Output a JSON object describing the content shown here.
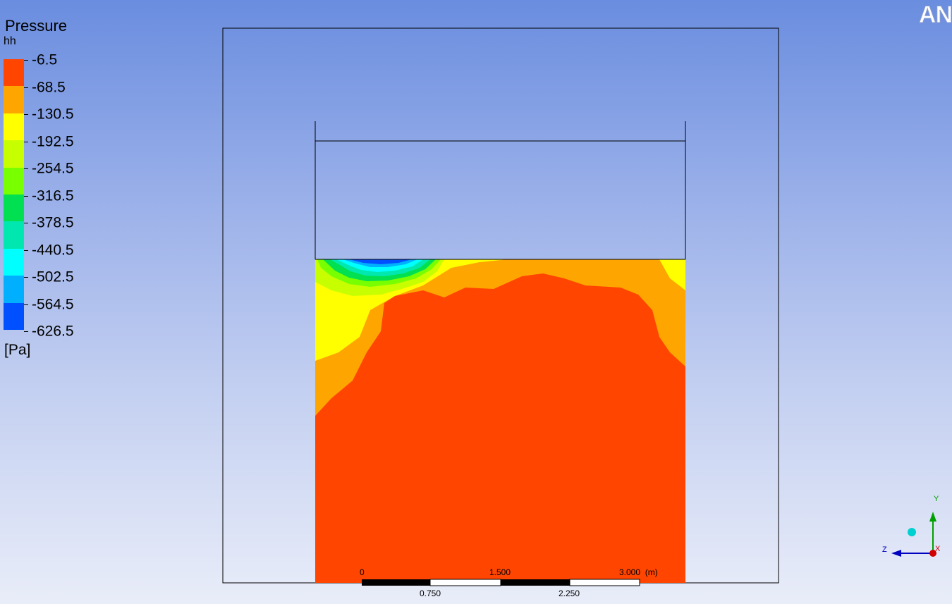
{
  "legend": {
    "title": "Pressure",
    "subtitle": "hh",
    "unit": "[Pa]",
    "labels": [
      "-6.5",
      "-68.5",
      "-130.5",
      "-192.5",
      "-254.5",
      "-316.5",
      "-378.5",
      "-440.5",
      "-502.5",
      "-564.5",
      "-626.5"
    ],
    "colors": [
      "#ff4500",
      "#ffa500",
      "#ffff00",
      "#c8ff00",
      "#78ff00",
      "#00e050",
      "#00e8b0",
      "#00ffff",
      "#00b0ff",
      "#0050ff"
    ]
  },
  "logo": {
    "text": "AN"
  },
  "scale_bar": {
    "top_labels": [
      "0",
      "1.500",
      "3.000  (m)"
    ],
    "bottom_labels": [
      "0.750",
      "2.250"
    ]
  },
  "triad": {
    "y_label": "Y",
    "z_label": "Z",
    "x_label": "X",
    "y_color": "#00a000",
    "z_color": "#0000c0",
    "x_color": "#d00000"
  }
}
